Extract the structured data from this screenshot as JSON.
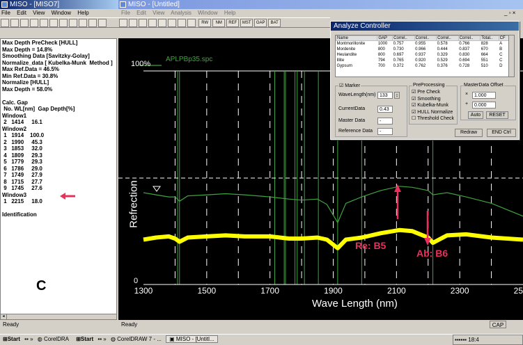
{
  "left_window": {
    "title": "MISO - [MISO7]",
    "menu": [
      "File",
      "Edit",
      "View",
      "Window",
      "Help"
    ]
  },
  "right_window": {
    "title": "MISO - [Untitled]",
    "menu": [
      "File",
      "Edit",
      "View",
      "Analysis",
      "Window",
      "Help"
    ],
    "toolbar_labels": [
      "RW",
      "NM",
      "REF",
      "MST",
      "GAP",
      "BAT"
    ]
  },
  "log_lines": [
    "Max Depth PreCheck [HULL]",
    "Max Depth = 14.8%",
    "Smoothing Data [Savitzky-Golay]",
    "Normalize_data [ Kubelka-Munk  Method ]",
    "Max Ref.Data = 46.5%",
    "Min Ref.Data = 30.8%",
    "Normalize [HULL]",
    "Max Depth = 58.0%",
    "",
    "Calc. Gap",
    " No. WL[nm]  Gap Depth[%]",
    "Window1",
    " 2   1414     16.1",
    "Window2",
    " 1   1914    100.0",
    " 2   1990     45.3",
    " 3   1853     32.0",
    " 4   1809     29.3",
    " 5   1779     29.3",
    " 6   1786     29.0",
    " 7   1749     27.9",
    " 8   1715     27.7",
    " 9   1745     27.6",
    "Window3",
    " 1   2215     18.0",
    "",
    "Identification"
  ],
  "panel_letter": "C",
  "chart": {
    "series_label": "APLPBp35.spc",
    "y_top_label": "100%",
    "y_zero_label": "0",
    "ylabel": "Refrection",
    "xlabel": "Wave Length (nm)",
    "xticks": [
      "1300",
      "1500",
      "1700",
      "1900",
      "2100",
      "2300",
      "2500"
    ],
    "annotation_re": "Re: B5",
    "annotation_ab": "Ab: B6"
  },
  "chart_data": {
    "type": "line",
    "xlabel": "Wave Length (nm)",
    "ylabel": "Refrection",
    "xlim": [
      1300,
      2500
    ],
    "x_ticks": [
      1300,
      1500,
      1700,
      1900,
      2100,
      2300,
      2500
    ],
    "series": [
      {
        "name": "APLPBp35.spc",
        "x": [
          1300,
          1340,
          1380,
          1400,
          1414,
          1440,
          1500,
          1560,
          1620,
          1700,
          1760,
          1800,
          1850,
          1880,
          1914,
          1940,
          1990,
          2050,
          2110,
          2150,
          2200,
          2215,
          2260,
          2320,
          2400,
          2500
        ],
        "y": [
          43,
          42,
          41,
          41,
          39,
          41.5,
          42,
          42.5,
          42,
          41,
          40,
          39.5,
          40,
          37.5,
          29,
          38,
          41,
          44,
          46,
          45.5,
          44,
          42,
          43,
          41,
          38,
          32
        ]
      },
      {
        "name": "",
        "x": [
          1300,
          1340,
          1380,
          1400,
          1414,
          1440,
          1500,
          1560,
          1620,
          1700,
          1760,
          1800,
          1850,
          1880,
          1914,
          1940,
          1990,
          2050,
          2110,
          2150,
          2200,
          2215,
          2260,
          2320,
          2400,
          2500
        ],
        "y": [
          21,
          22,
          22.5,
          21.5,
          20,
          22,
          22.5,
          23,
          22.5,
          22.5,
          21.5,
          21.5,
          22,
          21,
          17,
          21,
          22,
          24,
          25.5,
          25,
          22,
          19.5,
          23,
          23.5,
          22,
          21
        ]
      }
    ]
  },
  "dialog": {
    "title": "Analyze Controller",
    "table_headers": [
      "Name",
      "GAP",
      "Correl..",
      "Correl..",
      "Correl..",
      "Correl..",
      "Total..",
      "CF"
    ],
    "table_rows": [
      [
        "Montmorillonite",
        "1000",
        "0.757",
        "0.955",
        "0.578",
        "0.766",
        "828",
        "A"
      ],
      [
        "Mordenite",
        "800",
        "0.730",
        "0.966",
        "0.444",
        "0.837",
        "670",
        "B"
      ],
      [
        "Heulandite",
        "800",
        "0.697",
        "0.937",
        "0.329",
        "0.830",
        "664",
        "C"
      ],
      [
        "Illite",
        "794",
        "0.765",
        "0.920",
        "0.529",
        "0.694",
        "551",
        "C"
      ],
      [
        "Gypsum",
        "700",
        "0.372",
        "0.762",
        "0.376",
        "0.728",
        "510",
        "D"
      ]
    ],
    "marker_label": "Marker",
    "wavelength_label": "WaveLength(nm)",
    "wavelength_value": "133",
    "current_label": "CurrentData",
    "current_value": "0.43",
    "master_label": "Master Data",
    "master_value": "-",
    "reference_label": "Reference Data",
    "reference_value": "-",
    "preproc_title": "PreProcessing",
    "preproc": [
      {
        "label": "Pre Check",
        "checked": "☑"
      },
      {
        "label": "Smoothing",
        "checked": "☑"
      },
      {
        "label": "Kubelka-Munk",
        "checked": "☑"
      },
      {
        "label": "HULL Normalize",
        "checked": "☑"
      },
      {
        "label": "Threshold Check",
        "checked": "☐"
      }
    ],
    "offset_title": "MasterData Offset",
    "mult_sym": "×",
    "offset1": "1.000",
    "plus_sym": "+",
    "offset2": "0.000",
    "auto": "Auto",
    "reset": "RESET",
    "redraw": "Redraw",
    "endctrl": "END Ctrl"
  },
  "status_left": "Ready",
  "status_right": "Ready",
  "status_cap": "CAP",
  "taskbar": {
    "start1": "Start",
    "app1": "CorelDRA",
    "start2": "Start",
    "app2": "CorelDRAW 7 - ...",
    "app3": "MISO - [Untitl...",
    "clock": "18:4"
  }
}
